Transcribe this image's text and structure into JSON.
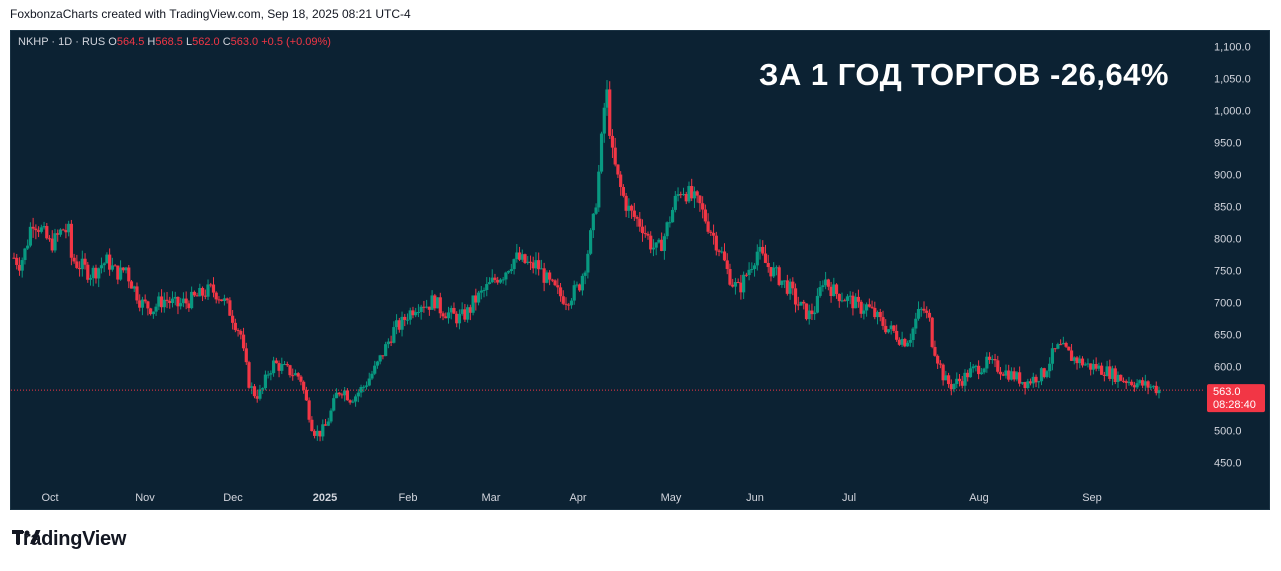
{
  "header": {
    "text": "FoxbonzaCharts created with TradingView.com, Sep 18, 2025 08:21 UTC-4"
  },
  "legend": {
    "symbol": "NKHP · 1D · RUS",
    "open_label": "O",
    "open": "564.5",
    "high_label": "H",
    "high": "568.5",
    "low_label": "L",
    "low": "562.0",
    "close_label": "C",
    "close": "563.0",
    "change": "+0.5 (+0.09%)"
  },
  "headline": "ЗА 1 ГОД ТОРГОВ -26,64%",
  "price_badge": {
    "price": "563.0",
    "countdown": "08:28:40"
  },
  "footer": {
    "brand": "TradingView",
    "logo_icon": "tradingview-logo-icon"
  },
  "colors": {
    "background": "#0c2233",
    "up": "#089981",
    "down": "#f23645",
    "text": "#d1d4dc"
  },
  "chart_data": {
    "type": "candlestick",
    "interval": "1D",
    "y_axis": {
      "min": 420,
      "max": 1110,
      "ticks": [
        450,
        500,
        550,
        600,
        650,
        700,
        750,
        800,
        850,
        900,
        950,
        1000,
        1050,
        1100
      ],
      "tick_labels": [
        "450.0",
        "500.0",
        "550.0",
        "600.0",
        "650.0",
        "700.0",
        "750.0",
        "800.0",
        "850.0",
        "900.0",
        "950.0",
        "1,000.0",
        "1,050.0",
        "1,100.0"
      ],
      "position": "right"
    },
    "x_axis": {
      "labels": [
        "Oct",
        "Nov",
        "Dec",
        "2025",
        "Feb",
        "Mar",
        "Apr",
        "May",
        "Jun",
        "Jul",
        "Aug",
        "Sep"
      ]
    },
    "last_price": 563.0,
    "series": [
      {
        "m": 0,
        "v": [
          770,
          760,
          785,
          830,
          820,
          805,
          790,
          800,
          815,
          810
        ]
      },
      {
        "m": 1,
        "v": [
          770,
          760,
          755,
          745,
          750,
          760,
          765,
          750,
          745,
          755
        ]
      },
      {
        "m": 2,
        "v": [
          740,
          720,
          700,
          695,
          690,
          700,
          705,
          700,
          695,
          700
        ]
      },
      {
        "m": 3,
        "v": [
          700,
          705,
          710,
          715,
          720,
          715,
          705,
          690,
          670,
          650
        ]
      },
      {
        "m": 4,
        "v": [
          620,
          570,
          555,
          560,
          590,
          605,
          600,
          595,
          590,
          585
        ]
      },
      {
        "m": 5,
        "v": [
          580,
          540,
          500,
          495,
          505,
          530,
          560,
          565,
          550,
          555
        ]
      },
      {
        "m": 6,
        "v": [
          560,
          570,
          585,
          600,
          620,
          640,
          660,
          665,
          680,
          690
        ]
      },
      {
        "m": 7,
        "v": [
          695,
          700,
          695,
          705,
          690,
          685,
          680,
          675,
          680,
          690
        ]
      },
      {
        "m": 8,
        "v": [
          700,
          710,
          720,
          730,
          740,
          745,
          760,
          770,
          765,
          760
        ]
      },
      {
        "m": 9,
        "v": [
          755,
          760,
          745,
          730,
          720,
          710,
          705,
          715,
          725,
          760
        ]
      },
      {
        "m": 10,
        "v": [
          780,
          830,
          920,
          1040,
          930,
          890,
          860,
          840,
          830,
          820
        ]
      },
      {
        "m": 11,
        "v": [
          810,
          790,
          780,
          800,
          830,
          860,
          880,
          870,
          860,
          850
        ]
      },
      {
        "m": 12,
        "v": [
          840,
          820,
          800,
          780,
          750,
          730,
          720,
          740,
          760,
          780
        ]
      },
      {
        "m": 13,
        "v": [
          775,
          760,
          750,
          740,
          730,
          720,
          700,
          690,
          680,
          690
        ]
      },
      {
        "m": 14,
        "v": [
          700,
          740,
          725,
          715,
          710,
          705,
          700,
          690,
          695,
          685
        ]
      },
      {
        "m": 15,
        "v": [
          680,
          670,
          660,
          655,
          645,
          640,
          650,
          680,
          690,
          670
        ]
      },
      {
        "m": 16,
        "v": [
          640,
          610,
          580,
          570,
          575,
          580,
          590,
          595,
          600,
          605
        ]
      },
      {
        "m": 17,
        "v": [
          605,
          600,
          595,
          590,
          585,
          580,
          575,
          580,
          585,
          590
        ]
      },
      {
        "m": 18,
        "v": [
          600,
          620,
          630,
          625,
          615,
          610,
          605,
          600,
          600,
          595
        ]
      },
      {
        "m": 19,
        "v": [
          595,
          590,
          585,
          580,
          578,
          575,
          572,
          570,
          568,
          563
        ]
      }
    ]
  }
}
